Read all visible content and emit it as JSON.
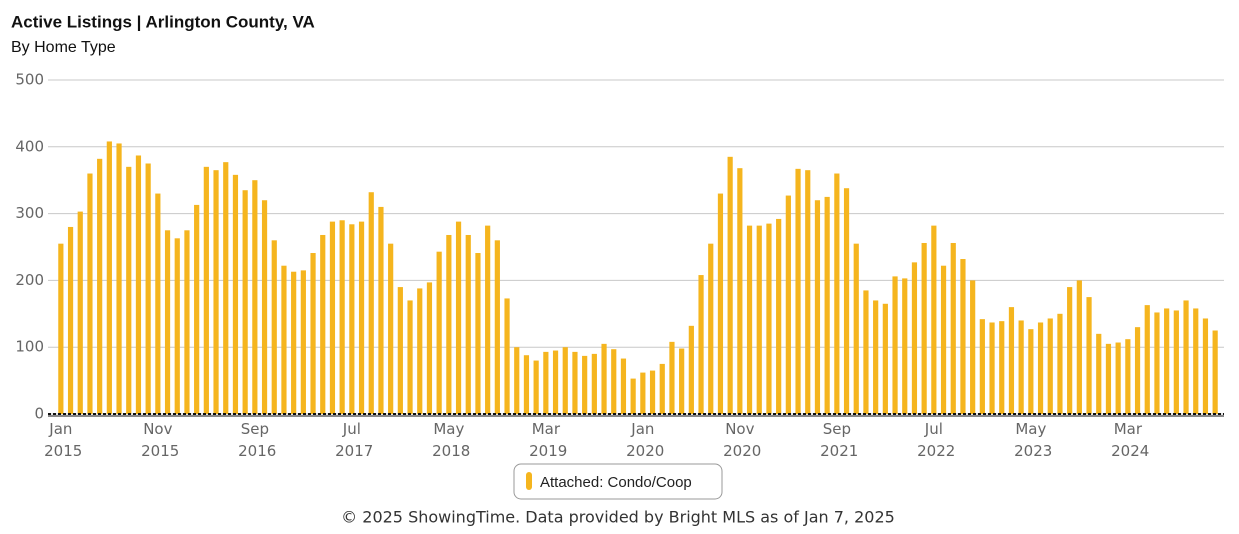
{
  "chart_data": {
    "type": "bar",
    "title": "Active Listings | Arlington County, VA",
    "subtitle": "By Home Type",
    "footer": "© 2025 ShowingTime. Data provided by Bright MLS as of Jan 7, 2025",
    "categories": [
      "Jan 2015",
      null,
      null,
      null,
      null,
      null,
      null,
      null,
      null,
      null,
      "Nov 2015",
      null,
      null,
      null,
      null,
      null,
      null,
      null,
      null,
      null,
      "Sep 2016",
      null,
      null,
      null,
      null,
      null,
      null,
      null,
      null,
      null,
      "Jul 2017",
      null,
      null,
      null,
      null,
      null,
      null,
      null,
      null,
      null,
      "May 2018",
      null,
      null,
      null,
      null,
      null,
      null,
      null,
      null,
      null,
      "Mar 2019",
      null,
      null,
      null,
      null,
      null,
      null,
      null,
      null,
      null,
      "Jan 2020",
      null,
      null,
      null,
      null,
      null,
      null,
      null,
      null,
      null,
      "Nov 2020",
      null,
      null,
      null,
      null,
      null,
      null,
      null,
      null,
      null,
      "Sep 2021",
      null,
      null,
      null,
      null,
      null,
      null,
      null,
      null,
      null,
      "Jul 2022",
      null,
      null,
      null,
      null,
      null,
      null,
      null,
      null,
      null,
      "May 2023",
      null,
      null,
      null,
      null,
      null,
      null,
      null,
      null,
      null,
      "Mar 2024",
      null,
      null,
      null,
      null,
      null,
      null,
      null,
      null,
      null
    ],
    "series": [
      {
        "name": "Attached: Condo/Coop",
        "color": "#f5b51e",
        "values": [
          255,
          280,
          303,
          360,
          382,
          408,
          405,
          370,
          387,
          375,
          330,
          275,
          263,
          275,
          313,
          370,
          365,
          377,
          358,
          335,
          350,
          320,
          260,
          222,
          213,
          215,
          241,
          268,
          288,
          290,
          284,
          288,
          332,
          310,
          255,
          190,
          170,
          188,
          197,
          243,
          268,
          288,
          268,
          241,
          282,
          260,
          173,
          100,
          88,
          80,
          93,
          95,
          100,
          93,
          87,
          90,
          105,
          97,
          83,
          53,
          62,
          65,
          75,
          108,
          98,
          132,
          208,
          255,
          330,
          385,
          368,
          282,
          282,
          285,
          292,
          327,
          367,
          365,
          320,
          325,
          360,
          338,
          255,
          185,
          170,
          165,
          206,
          203,
          227,
          256,
          282,
          222,
          256,
          232,
          200,
          142,
          137,
          139,
          160,
          140,
          127,
          137,
          143,
          150,
          190,
          200,
          175,
          120,
          105,
          107,
          112,
          130,
          163,
          152,
          158,
          155,
          170,
          158,
          143,
          125
        ]
      }
    ],
    "ylim": [
      0,
      500
    ],
    "yticks": [
      0,
      100,
      200,
      300,
      400,
      500
    ],
    "grid": true
  }
}
